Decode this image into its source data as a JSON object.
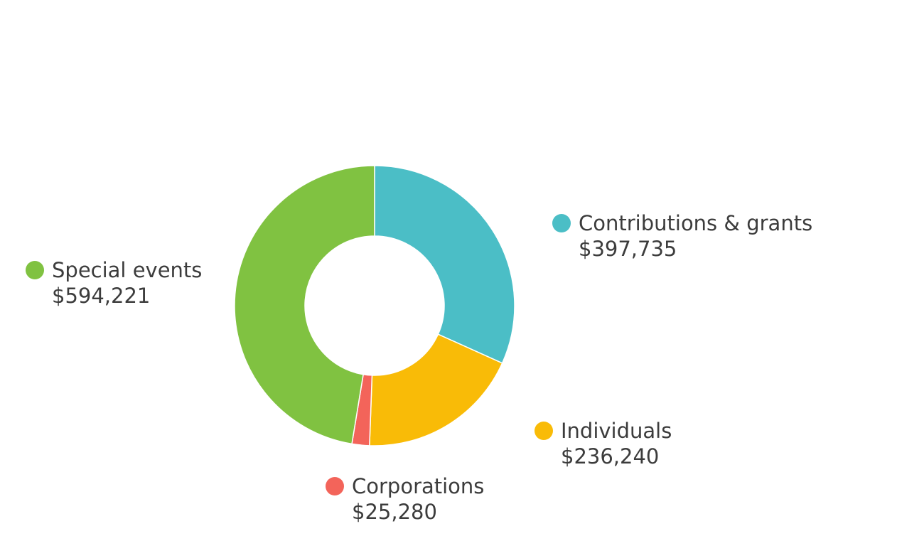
{
  "chart_data": {
    "type": "pie",
    "donut": true,
    "title": "",
    "slices": [
      {
        "label": "Contributions & grants",
        "value": 397735,
        "value_label": "$397,735",
        "color": "#4bbec6"
      },
      {
        "label": "Individuals",
        "value": 236240,
        "value_label": "$236,240",
        "color": "#f9bb07"
      },
      {
        "label": "Corporations",
        "value": 25280,
        "value_label": "$25,280",
        "color": "#f3645a"
      },
      {
        "label": "Special events",
        "value": 594221,
        "value_label": "$594,221",
        "color": "#80c241"
      }
    ]
  }
}
